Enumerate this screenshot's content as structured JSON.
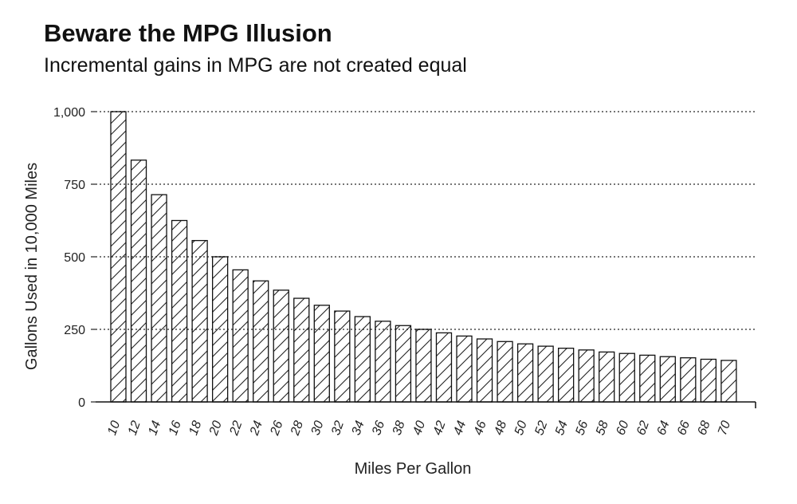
{
  "chart_data": {
    "type": "bar",
    "title": "Beware the MPG Illusion",
    "subtitle": "Incremental gains in MPG are not created equal",
    "xlabel": "Miles Per Gallon",
    "ylabel": "Gallons Used in 10,000 Miles",
    "ylim": [
      0,
      1000
    ],
    "yticks": [
      0,
      250,
      500,
      750,
      1000
    ],
    "ytick_labels": [
      "0",
      "250",
      "500",
      "750",
      "1,000"
    ],
    "grid": "horizontal dotted",
    "bar_fill": "diagonal hatch",
    "categories": [
      "10",
      "12",
      "14",
      "16",
      "18",
      "20",
      "22",
      "24",
      "26",
      "28",
      "30",
      "32",
      "34",
      "36",
      "38",
      "40",
      "42",
      "44",
      "46",
      "48",
      "50",
      "52",
      "54",
      "56",
      "58",
      "60",
      "62",
      "64",
      "66",
      "68",
      "70"
    ],
    "values": [
      1000,
      833,
      714,
      625,
      556,
      500,
      455,
      417,
      385,
      357,
      333,
      313,
      294,
      278,
      263,
      250,
      238,
      227,
      217,
      208,
      200,
      192,
      185,
      179,
      172,
      167,
      161,
      156,
      152,
      147,
      143
    ]
  }
}
